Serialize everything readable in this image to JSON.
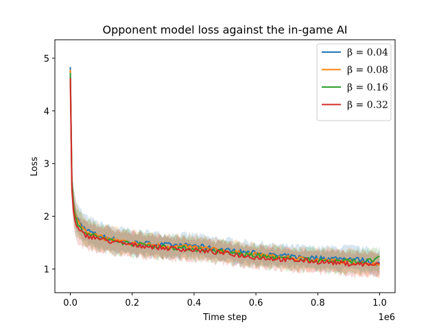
{
  "chart_data": {
    "type": "line",
    "title": "Opponent model loss against the in-game AI",
    "xlabel": "Time step",
    "ylabel": "Loss",
    "x_offset_label": "1e6",
    "xlim": [
      -50000,
      1050000
    ],
    "ylim": [
      0.55,
      5.35
    ],
    "xticks": [
      0,
      200000,
      400000,
      600000,
      800000,
      1000000
    ],
    "xtick_labels": [
      "0.0",
      "0.2",
      "0.4",
      "0.6",
      "0.8",
      "1.0"
    ],
    "yticks": [
      1,
      2,
      3,
      4,
      5
    ],
    "ytick_labels": [
      "1",
      "2",
      "3",
      "4",
      "5"
    ],
    "legend_position": "top-right",
    "grid": false,
    "x": [
      0,
      5000,
      10000,
      15000,
      20000,
      30000,
      40000,
      50000,
      60000,
      80000,
      100000,
      150000,
      200000,
      250000,
      300000,
      350000,
      400000,
      450000,
      500000,
      550000,
      600000,
      650000,
      700000,
      750000,
      800000,
      850000,
      900000,
      950000,
      1000000
    ],
    "series": [
      {
        "name": "β = 0.04",
        "color": "#1f77b4",
        "values": [
          4.83,
          2.7,
          2.3,
          2.1,
          1.98,
          1.88,
          1.8,
          1.76,
          1.72,
          1.66,
          1.62,
          1.55,
          1.5,
          1.48,
          1.46,
          1.44,
          1.45,
          1.4,
          1.36,
          1.33,
          1.3,
          1.26,
          1.24,
          1.22,
          1.21,
          1.2,
          1.2,
          1.17,
          1.1
        ],
        "band": [
          0.18,
          0.25,
          0.28,
          0.28,
          0.27,
          0.26,
          0.26,
          0.25,
          0.25,
          0.25,
          0.24,
          0.23,
          0.22,
          0.22,
          0.21,
          0.21,
          0.21,
          0.2,
          0.2,
          0.2,
          0.2,
          0.2,
          0.2,
          0.2,
          0.2,
          0.21,
          0.22,
          0.22,
          0.22
        ]
      },
      {
        "name": "β = 0.08",
        "color": "#ff7f0e",
        "values": [
          4.78,
          2.65,
          2.25,
          2.05,
          1.95,
          1.85,
          1.78,
          1.73,
          1.7,
          1.64,
          1.6,
          1.53,
          1.49,
          1.46,
          1.44,
          1.42,
          1.41,
          1.38,
          1.34,
          1.3,
          1.27,
          1.24,
          1.21,
          1.19,
          1.17,
          1.15,
          1.14,
          1.12,
          1.08
        ],
        "band": [
          0.18,
          0.25,
          0.28,
          0.28,
          0.27,
          0.26,
          0.26,
          0.25,
          0.25,
          0.25,
          0.24,
          0.23,
          0.22,
          0.22,
          0.21,
          0.21,
          0.21,
          0.2,
          0.2,
          0.2,
          0.2,
          0.2,
          0.2,
          0.2,
          0.2,
          0.21,
          0.22,
          0.22,
          0.22
        ]
      },
      {
        "name": "β = 0.16",
        "color": "#2ca02c",
        "values": [
          4.72,
          2.6,
          2.2,
          2.0,
          1.9,
          1.8,
          1.74,
          1.7,
          1.67,
          1.62,
          1.58,
          1.52,
          1.48,
          1.45,
          1.42,
          1.4,
          1.38,
          1.35,
          1.32,
          1.28,
          1.25,
          1.22,
          1.19,
          1.18,
          1.16,
          1.15,
          1.15,
          1.13,
          1.2
        ],
        "band": [
          0.18,
          0.25,
          0.28,
          0.28,
          0.27,
          0.26,
          0.26,
          0.25,
          0.25,
          0.25,
          0.24,
          0.23,
          0.22,
          0.22,
          0.21,
          0.21,
          0.21,
          0.2,
          0.2,
          0.2,
          0.2,
          0.2,
          0.2,
          0.2,
          0.2,
          0.21,
          0.22,
          0.22,
          0.22
        ]
      },
      {
        "name": "β = 0.32",
        "color": "#d62728",
        "values": [
          4.62,
          2.5,
          2.1,
          1.9,
          1.8,
          1.72,
          1.67,
          1.64,
          1.62,
          1.6,
          1.56,
          1.5,
          1.46,
          1.43,
          1.4,
          1.38,
          1.36,
          1.33,
          1.3,
          1.26,
          1.22,
          1.2,
          1.17,
          1.16,
          1.14,
          1.12,
          1.1,
          1.09,
          1.08
        ],
        "band": [
          0.18,
          0.25,
          0.28,
          0.28,
          0.27,
          0.26,
          0.26,
          0.25,
          0.25,
          0.25,
          0.24,
          0.23,
          0.22,
          0.22,
          0.21,
          0.21,
          0.21,
          0.2,
          0.2,
          0.2,
          0.2,
          0.2,
          0.2,
          0.2,
          0.2,
          0.21,
          0.22,
          0.22,
          0.22
        ]
      }
    ]
  }
}
